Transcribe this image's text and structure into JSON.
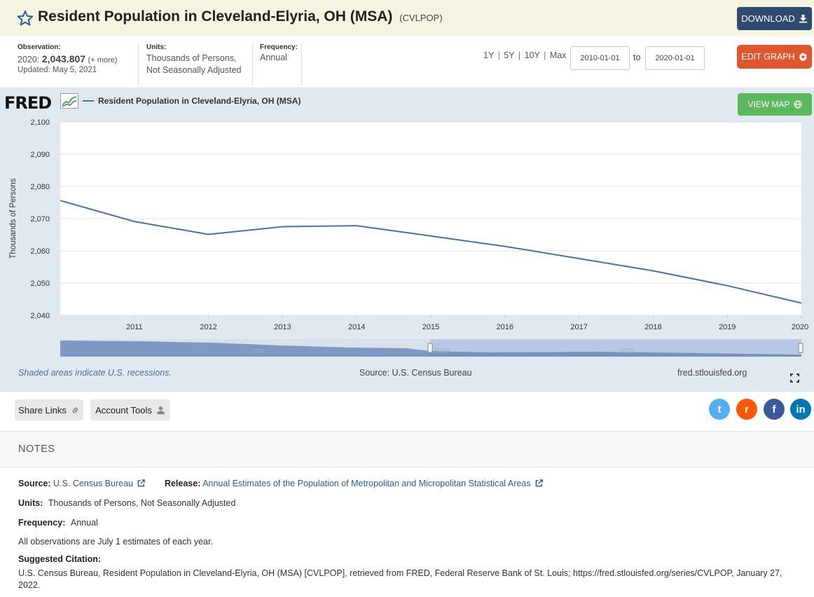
{
  "header": {
    "title": "Resident Population in Cleveland-Elyria, OH (MSA)",
    "series_code": "(CVLPOP)",
    "download_label": "DOWNLOAD"
  },
  "meta": {
    "observation_label": "Observation:",
    "obs_period": "2020:",
    "obs_value": "2,043.807",
    "obs_more": "(+ more)",
    "updated": "Updated: May 5, 2021",
    "units_label": "Units:",
    "units_line1": "Thousands of Persons,",
    "units_line2": "Not Seasonally Adjusted",
    "frequency_label": "Frequency:",
    "frequency_value": "Annual"
  },
  "range_controls": {
    "buttons": [
      "1Y",
      "5Y",
      "10Y",
      "Max"
    ],
    "start_date": "2010-01-01",
    "to_label": "to",
    "end_date": "2020-01-01",
    "edit_label": "EDIT GRAPH"
  },
  "graph": {
    "logo": "FRED",
    "view_map_label": "VIEW MAP",
    "recession_note": "Shaded areas indicate U.S. recessions.",
    "source_note": "Source: U.S. Census Bureau",
    "site_note": "fred.stlouisfed.org",
    "navigator_labels": [
      "2005",
      "2010",
      "2015"
    ]
  },
  "chart_data": {
    "type": "line",
    "series": [
      {
        "name": "Resident Population in Cleveland-Elyria, OH (MSA)",
        "x": [
          2010,
          2011,
          2012,
          2013,
          2014,
          2015,
          2016,
          2017,
          2018,
          2019,
          2020
        ],
        "values": [
          2075.6,
          2069.1,
          2065.1,
          2067.5,
          2067.8,
          2064.6,
          2061.4,
          2057.6,
          2053.8,
          2049.2,
          2043.8
        ],
        "color": "#4572a7"
      }
    ],
    "xlim": [
      2010,
      2020
    ],
    "ylim": [
      2040,
      2100
    ],
    "x_ticks": [
      "2011",
      "2012",
      "2013",
      "2014",
      "2015",
      "2016",
      "2017",
      "2018",
      "2019",
      "2020"
    ],
    "y_ticks": [
      "2,040",
      "2,050",
      "2,060",
      "2,070",
      "2,080",
      "2,090",
      "2,100"
    ],
    "ylabel": "Thousands of Persons",
    "grid": true
  },
  "share": {
    "share_links_label": "Share Links",
    "account_tools_label": "Account Tools",
    "social": [
      {
        "name": "twitter",
        "glyph": "t",
        "color": "#55acee"
      },
      {
        "name": "reddit",
        "glyph": "r",
        "color": "#ff5700"
      },
      {
        "name": "facebook",
        "glyph": "f",
        "color": "#3b5998"
      },
      {
        "name": "linkedin",
        "glyph": "in",
        "color": "#0077b5"
      }
    ]
  },
  "notes": {
    "heading": "NOTES",
    "source_label": "Source:",
    "source_value": "U.S. Census Bureau",
    "release_label": "Release:",
    "release_value": "Annual Estimates of the Population of Metropolitan and Micropolitan Statistical Areas",
    "units_label": "Units:",
    "units_value": "Thousands of Persons, Not Seasonally Adjusted",
    "frequency_label": "Frequency:",
    "frequency_value": "Annual",
    "observation_note": "All observations are July 1 estimates of each year.",
    "citation_label": "Suggested Citation:",
    "citation_text": "U.S. Census Bureau, Resident Population in Cleveland-Elyria, OH (MSA) [CVLPOP], retrieved from FRED, Federal Reserve Bank of St. Louis; https://fred.stlouisfed.org/series/CVLPOP, January 27, 2022."
  }
}
